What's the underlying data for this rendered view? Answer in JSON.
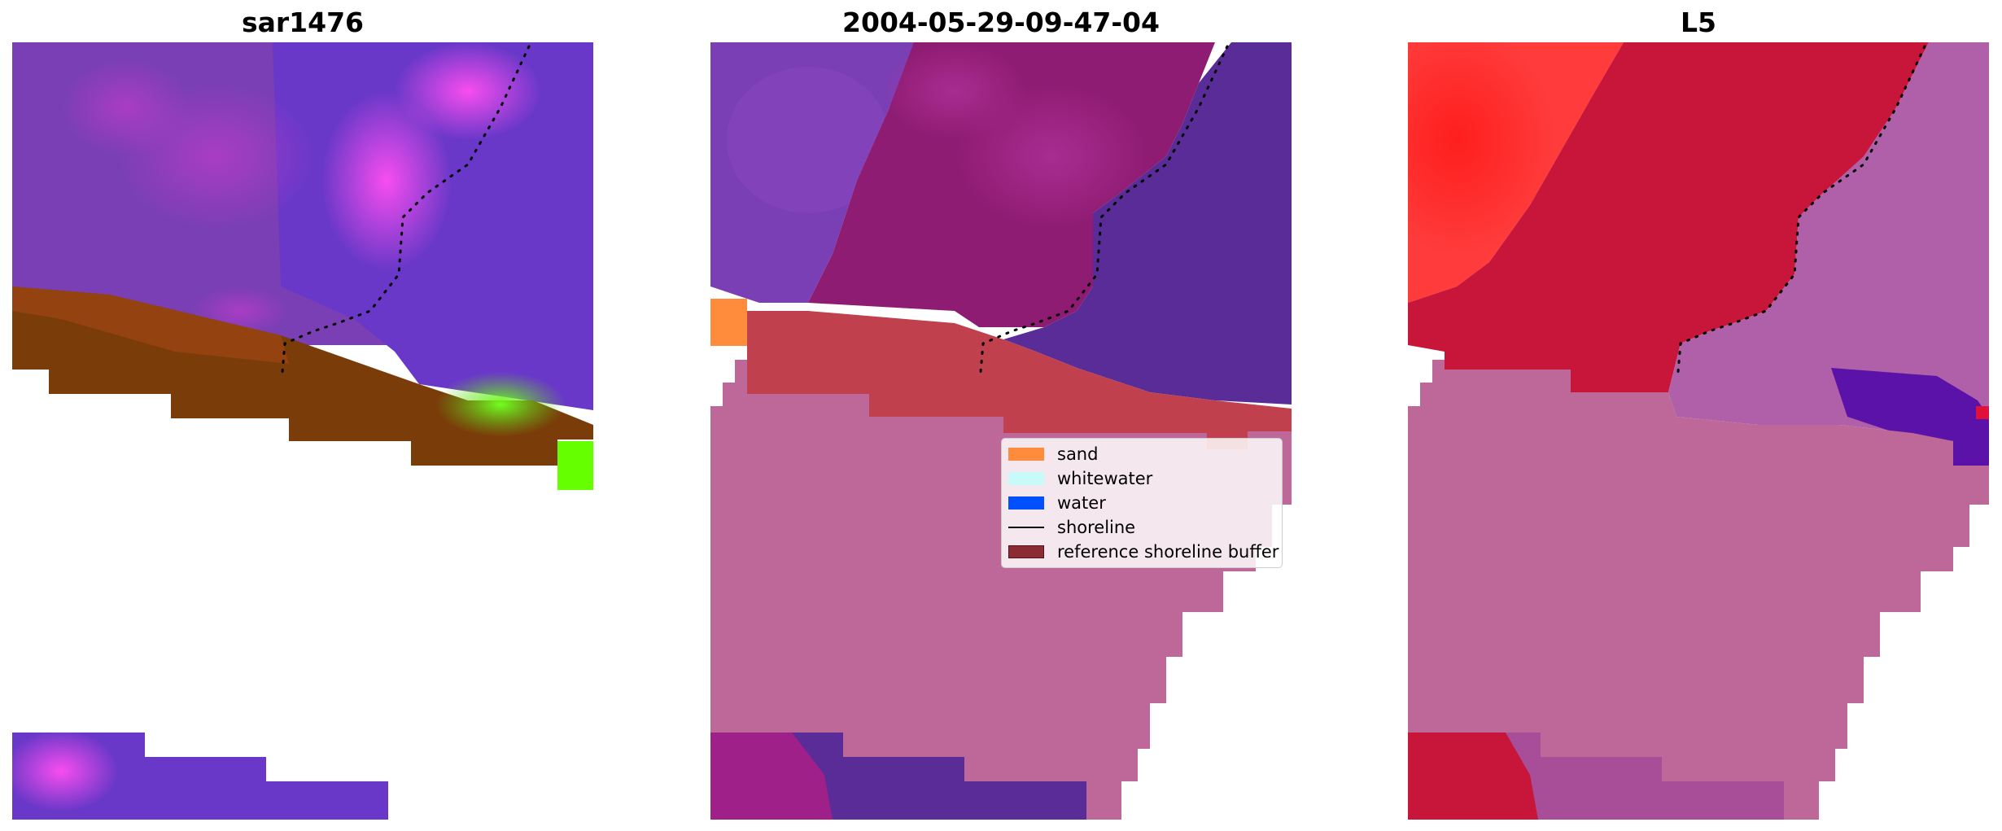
{
  "panels": [
    {
      "title": "sar1476"
    },
    {
      "title": "2004-05-29-09-47-04"
    },
    {
      "title": "L5"
    }
  ],
  "legend": {
    "items": [
      {
        "label": "sand",
        "color": "#ff8c3c",
        "kind": "patch"
      },
      {
        "label": "whitewater",
        "color": "#c8fafa",
        "kind": "patch"
      },
      {
        "label": "water",
        "color": "#0050ff",
        "kind": "patch"
      },
      {
        "label": "shoreline",
        "color": "#000000",
        "kind": "line"
      },
      {
        "label": "reference shoreline buffer",
        "color": "#8b2c35",
        "kind": "patch"
      }
    ]
  },
  "colors": {
    "land_purple": "#7a3fb4",
    "sand_brown": "#7a3c08",
    "bright_green": "#66ff00",
    "buffer_red": "#c0404e",
    "mask_pink": "#bd6898",
    "water_dark_purple": "#5a2c98",
    "crimson": "#c8163a",
    "bright_red": "#ff2a2a"
  }
}
